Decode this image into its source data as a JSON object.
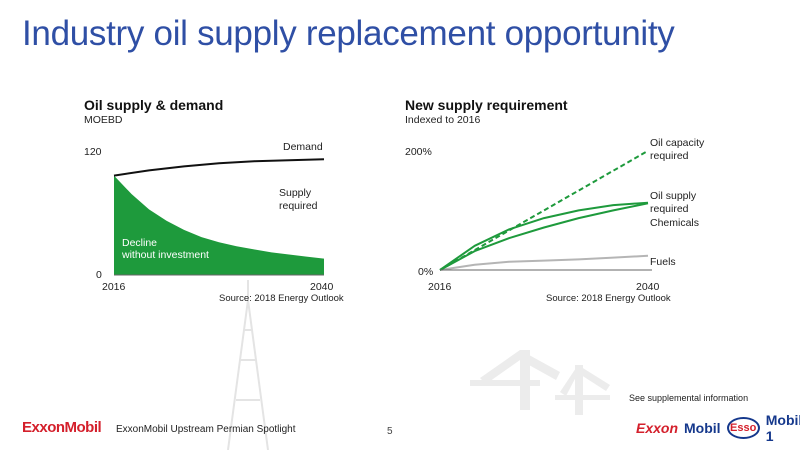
{
  "slide": {
    "title": "Industry oil supply replacement opportunity",
    "footer_company": "ExxonMobil",
    "footer_text": "ExxonMobil Upstream Permian Spotlight",
    "page_number": "5",
    "supplemental_note": "See supplemental information",
    "brands": [
      "Exxon",
      "Mobil",
      "Esso",
      "Mobil 1"
    ],
    "colors": {
      "title": "#2f4fa5",
      "green": "#1e9a3c",
      "gray": "#b5b5b5",
      "brand_red": "#d4202c",
      "brand_blue": "#15388c"
    }
  },
  "chart_data": [
    {
      "type": "area",
      "title": "Oil supply & demand",
      "subtitle": "MOEBD",
      "x_ticks": [
        "2016",
        "2040"
      ],
      "y_ticks": [
        "0",
        "120"
      ],
      "xlim": [
        2016,
        2040
      ],
      "ylim": [
        0,
        120
      ],
      "series": [
        {
          "name": "Demand",
          "kind": "line",
          "color": "#111111",
          "x": [
            2016,
            2020,
            2024,
            2028,
            2032,
            2036,
            2040
          ],
          "y": [
            97,
            102,
            106,
            109,
            111,
            112,
            113
          ]
        },
        {
          "name": "Decline without investment",
          "kind": "area",
          "color": "#1e9a3c",
          "x": [
            2016,
            2018,
            2020,
            2022,
            2024,
            2026,
            2028,
            2030,
            2032,
            2034,
            2036,
            2038,
            2040
          ],
          "y": [
            97,
            79,
            64,
            53,
            44,
            37,
            32,
            28,
            25,
            22,
            20,
            18,
            16
          ]
        }
      ],
      "annotations": [
        "Demand",
        "Supply",
        "required",
        "Decline",
        "without investment"
      ],
      "source": "Source:  2018 Energy Outlook"
    },
    {
      "type": "line",
      "title": "New supply requirement",
      "subtitle": "Indexed to 2016",
      "x_ticks": [
        "2016",
        "2040"
      ],
      "y_ticks": [
        "0%",
        "200%"
      ],
      "xlim": [
        2016,
        2040
      ],
      "ylim": [
        0,
        200
      ],
      "series": [
        {
          "name": "Oil capacity required",
          "style": "dashed",
          "color": "#1e9a3c",
          "x": [
            2016,
            2040
          ],
          "y": [
            0,
            202
          ]
        },
        {
          "name": "Oil supply required",
          "style": "solid",
          "color": "#1e9a3c",
          "x": [
            2016,
            2020,
            2024,
            2028,
            2032,
            2036,
            2040
          ],
          "y": [
            0,
            41,
            69,
            88,
            101,
            110,
            114
          ]
        },
        {
          "name": "Chemicals",
          "style": "solid",
          "color": "#1e9a3c",
          "x": [
            2016,
            2020,
            2024,
            2028,
            2032,
            2036,
            2040
          ],
          "y": [
            0,
            32,
            54,
            72,
            88,
            101,
            113
          ]
        },
        {
          "name": "Fuels",
          "style": "solid",
          "color": "#b5b5b5",
          "x": [
            2016,
            2020,
            2024,
            2028,
            2032,
            2036,
            2040
          ],
          "y": [
            0,
            9,
            14,
            16,
            18,
            21,
            24
          ]
        }
      ],
      "labels": {
        "oil_capacity": [
          "Oil capacity",
          "required"
        ],
        "oil_supply": [
          "Oil supply",
          "required"
        ],
        "chemicals": "Chemicals",
        "fuels": "Fuels"
      },
      "source": "Source:  2018 Energy Outlook"
    }
  ]
}
